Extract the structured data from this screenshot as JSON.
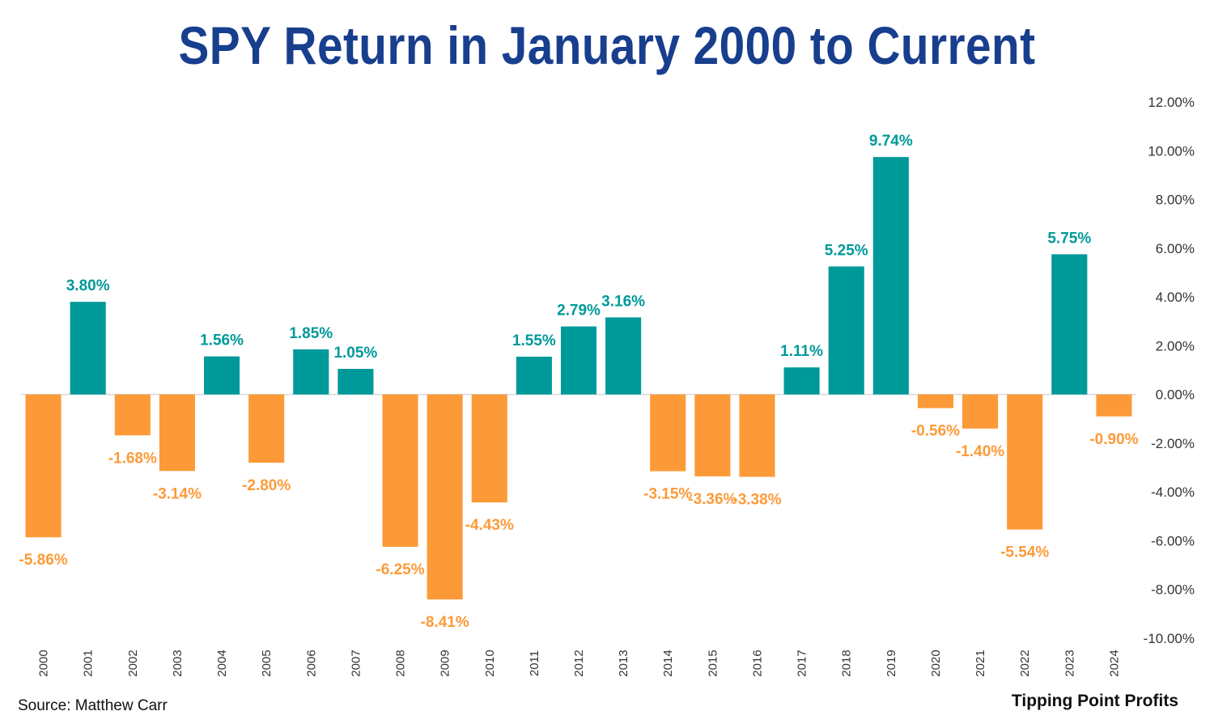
{
  "header": {
    "title": "SPY Return in January 2000 to Current"
  },
  "footer": {
    "source": "Source: Matthew Carr",
    "brand": "Tipping Point Profits"
  },
  "colors": {
    "positive": "#00999a",
    "negative": "#fd9a38",
    "title": "#183e8e",
    "axis_line": "#d9d9d9"
  },
  "chart_data": {
    "type": "bar",
    "title": "SPY Return in January 2000 to Current",
    "categories": [
      "2000",
      "2001",
      "2002",
      "2003",
      "2004",
      "2005",
      "2006",
      "2007",
      "2008",
      "2009",
      "2010",
      "2011",
      "2012",
      "2013",
      "2014",
      "2015",
      "2016",
      "2017",
      "2018",
      "2019",
      "2020",
      "2021",
      "2022",
      "2023",
      "2024"
    ],
    "values": [
      -5.86,
      3.8,
      -1.68,
      -3.14,
      1.56,
      -2.8,
      1.85,
      1.05,
      -6.25,
      -8.41,
      -4.43,
      1.55,
      2.79,
      3.16,
      -3.15,
      -3.36,
      -3.38,
      1.11,
      5.25,
      9.74,
      -0.56,
      -1.4,
      -5.54,
      5.75,
      -0.9
    ],
    "data_labels": [
      "-5.86%",
      "3.80%",
      "-1.68%",
      "-3.14%",
      "1.56%",
      "-2.80%",
      "1.85%",
      "1.05%",
      "-6.25%",
      "-8.41%",
      "-4.43%",
      "1.55%",
      "2.79%",
      "3.16%",
      "-3.15%",
      "-3.36%",
      "-3.38%",
      "1.11%",
      "5.25%",
      "9.74%",
      "-0.56%",
      "-1.40%",
      "-5.54%",
      "5.75%",
      "-0.90%"
    ],
    "ylim": [
      -10,
      12
    ],
    "y_axis_side": "right",
    "yticks": [
      12,
      10,
      8,
      6,
      4,
      2,
      0,
      -2,
      -4,
      -6,
      -8,
      -10
    ],
    "ytick_labels": [
      "12.00%",
      "10.00%",
      "8.00%",
      "6.00%",
      "4.00%",
      "2.00%",
      "0.00%",
      "-2.00%",
      "-4.00%",
      "-6.00%",
      "-8.00%",
      "-10.00%"
    ],
    "xlabel": "",
    "ylabel": "",
    "grid": false,
    "legend": "none"
  }
}
